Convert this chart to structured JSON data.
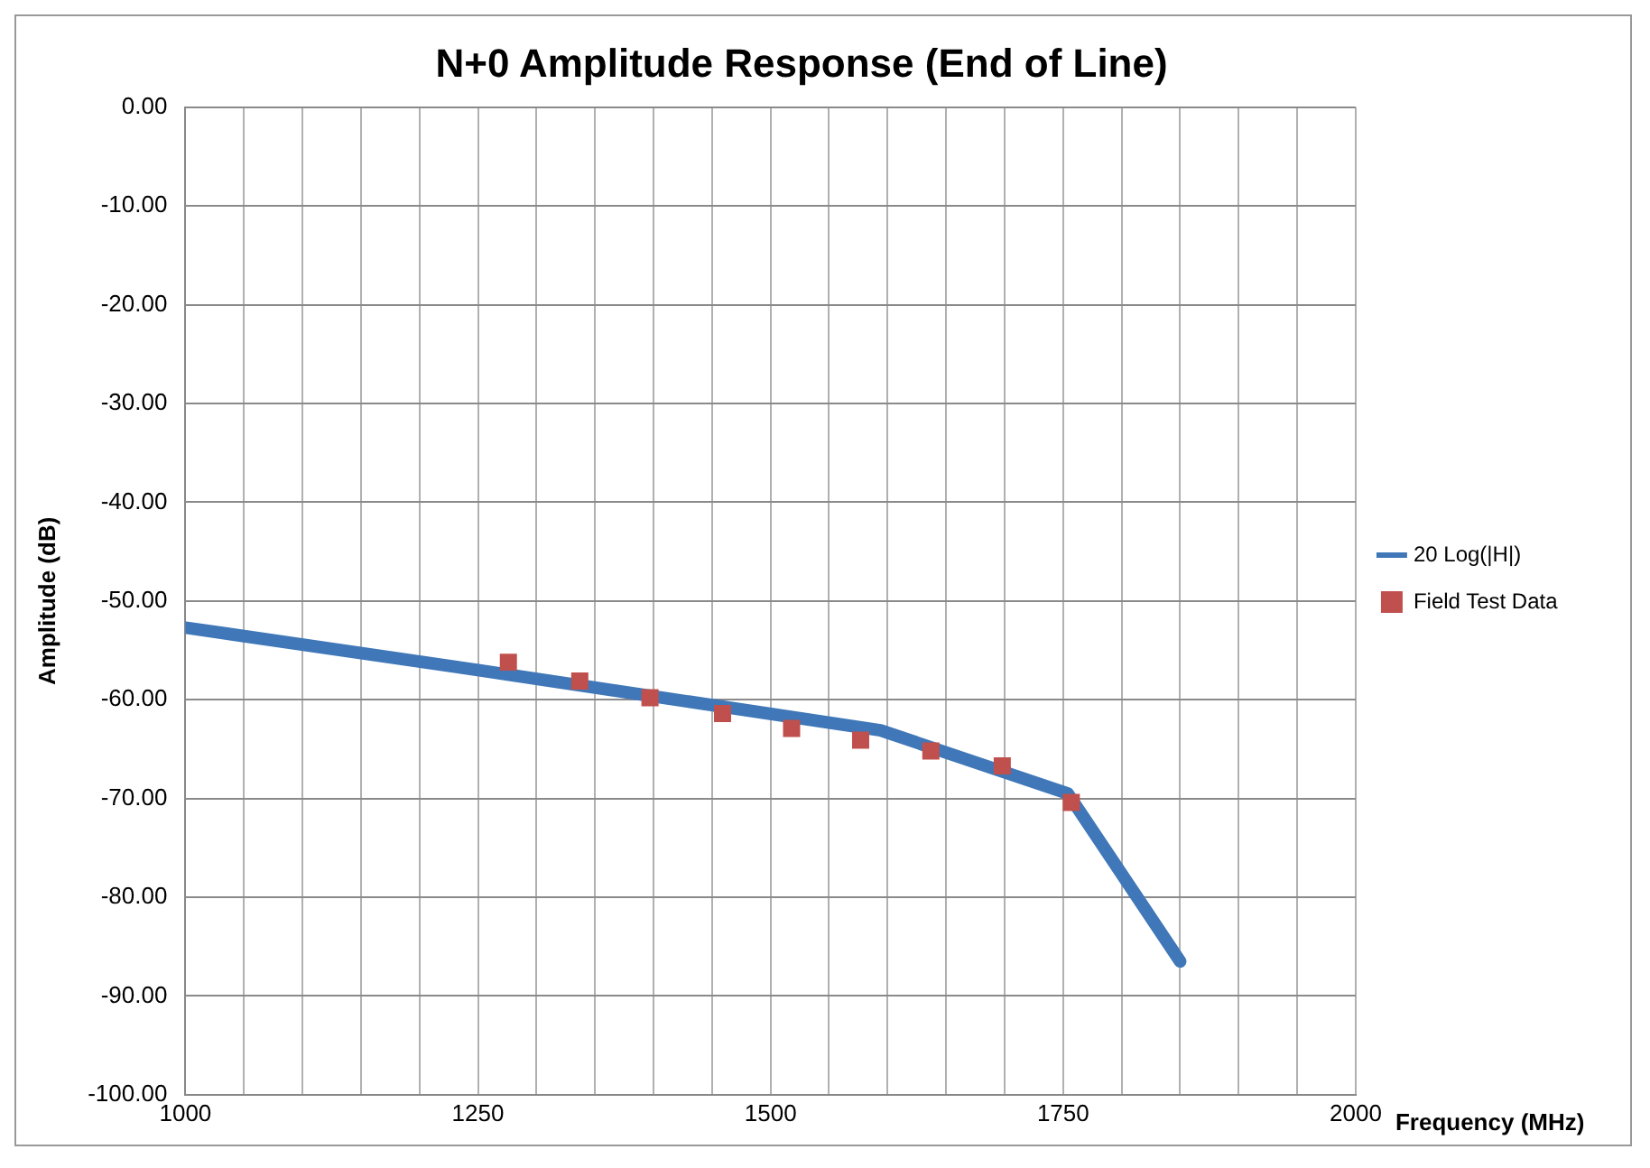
{
  "chart_data": {
    "type": "line",
    "title": "N+0 Amplitude Response (End of Line)",
    "xlabel": "Frequency (MHz)",
    "ylabel": "Amplitude (dB)",
    "xlim": [
      1000,
      2000
    ],
    "xticks": [
      1000,
      {
        "value": 1050,
        "label": null
      },
      {
        "value": 1100,
        "label": null
      },
      {
        "value": 1150,
        "label": null
      },
      {
        "value": 1200,
        "label": null
      },
      1250,
      {
        "value": 1300,
        "label": null
      },
      {
        "value": 1350,
        "label": null
      },
      {
        "value": 1400,
        "label": null
      },
      {
        "value": 1450,
        "label": null
      },
      1500,
      {
        "value": 1550,
        "label": null
      },
      {
        "value": 1600,
        "label": null
      },
      {
        "value": 1650,
        "label": null
      },
      {
        "value": 1700,
        "label": null
      },
      1750,
      {
        "value": 1800,
        "label": null
      },
      {
        "value": 1850,
        "label": null
      },
      {
        "value": 1900,
        "label": null
      },
      {
        "value": 1950,
        "label": null
      },
      2000
    ],
    "ylim": [
      -100,
      0
    ],
    "yticks": [
      {
        "value": 0,
        "label": "0.00"
      },
      {
        "value": -10,
        "label": "-10.00"
      },
      {
        "value": -20,
        "label": "-20.00"
      },
      {
        "value": -30,
        "label": "-30.00"
      },
      {
        "value": -40,
        "label": "-40.00"
      },
      {
        "value": -50,
        "label": "-50.00"
      },
      {
        "value": -60,
        "label": "-60.00"
      },
      {
        "value": -70,
        "label": "-70.00"
      },
      {
        "value": -80,
        "label": "-80.00"
      },
      {
        "value": -90,
        "label": "-90.00"
      },
      {
        "value": -100,
        "label": "-100.00"
      }
    ],
    "grid": true,
    "legend": "right",
    "series": [
      {
        "name": "20 Log(|H|)",
        "type": "line",
        "color": "#3f77b8",
        "marker": "none",
        "line_style": "solid",
        "x": [
          1000,
          1250,
          1594,
          1754,
          1850
        ],
        "values": [
          -52.7,
          -57.0,
          -63.1,
          -69.5,
          -86.5
        ]
      },
      {
        "name": "Field Test Data",
        "type": "scatter",
        "color": "#c0504d",
        "marker": "square",
        "x": [
          1276,
          1337,
          1397,
          1459,
          1518,
          1577,
          1637,
          1698,
          1757
        ],
        "values": [
          -56.2,
          -58.1,
          -59.8,
          -61.4,
          -62.9,
          -64.1,
          -65.2,
          -66.7,
          -70.4
        ]
      }
    ]
  }
}
